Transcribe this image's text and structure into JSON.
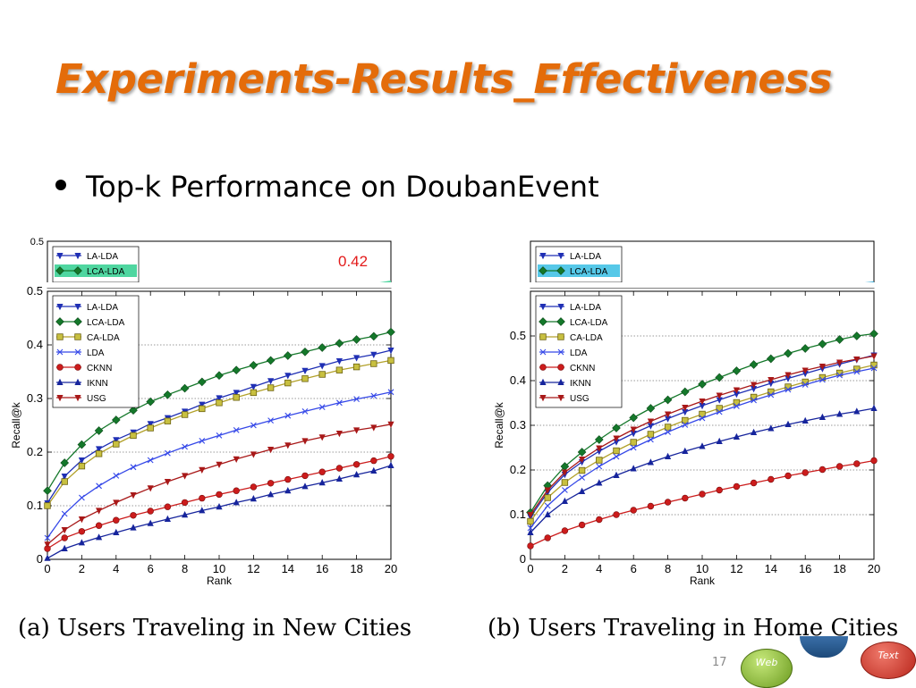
{
  "slide": {
    "title": "Experiments-Results_Effectiveness",
    "bullet": "Top-k Performance on DoubanEvent",
    "page_number": "17",
    "buttons": {
      "web": "Web",
      "text": "Text"
    }
  },
  "colors": {
    "title": "#e46c0a",
    "LA-LDA": "#1f2fb4",
    "LCA-LDA": "#14782a",
    "CA-LDA": "#b2a12a",
    "LDA": "#3548e8",
    "CKNN": "#cc1c1c",
    "IKNN": "#16249c",
    "USG": "#a81818",
    "annotation": "#e31b1b"
  },
  "chart_data": [
    {
      "type": "line",
      "title": "",
      "caption": "(a) Users Traveling in New Cities",
      "xlabel": "Rank",
      "ylabel": "Recall@k",
      "xlim": [
        0,
        20
      ],
      "ylim": [
        0,
        0.5
      ],
      "xticks": [
        "0",
        "2",
        "4",
        "6",
        "8",
        "10",
        "12",
        "14",
        "16",
        "18",
        "20"
      ],
      "yticks": [
        "0",
        "0.1",
        "0.2",
        "0.3",
        "0.4",
        "0.5"
      ],
      "grid": "horizontal dotted",
      "legend": "top-left",
      "x": [
        0,
        1,
        2,
        3,
        4,
        5,
        6,
        7,
        8,
        9,
        10,
        11,
        12,
        13,
        14,
        15,
        16,
        17,
        18,
        19,
        20
      ],
      "annotation": {
        "text": "0.42",
        "top_strip_legend": [
          "LA-LDA",
          "LCA-LDA"
        ],
        "top_strip_yticks": [
          "0.5"
        ]
      },
      "series": [
        {
          "name": "LA-LDA",
          "marker": "tri-down",
          "values": [
            0.105,
            0.155,
            0.185,
            0.206,
            0.223,
            0.237,
            0.253,
            0.264,
            0.276,
            0.289,
            0.301,
            0.311,
            0.322,
            0.333,
            0.343,
            0.352,
            0.361,
            0.37,
            0.376,
            0.382,
            0.39
          ]
        },
        {
          "name": "LCA-LDA",
          "marker": "diamond",
          "values": [
            0.128,
            0.18,
            0.214,
            0.24,
            0.26,
            0.278,
            0.294,
            0.307,
            0.319,
            0.331,
            0.343,
            0.353,
            0.362,
            0.371,
            0.38,
            0.387,
            0.395,
            0.403,
            0.41,
            0.416,
            0.424
          ]
        },
        {
          "name": "CA-LDA",
          "marker": "square",
          "values": [
            0.1,
            0.145,
            0.174,
            0.197,
            0.215,
            0.231,
            0.245,
            0.258,
            0.27,
            0.281,
            0.292,
            0.302,
            0.311,
            0.32,
            0.329,
            0.337,
            0.345,
            0.353,
            0.359,
            0.365,
            0.371
          ]
        },
        {
          "name": "LDA",
          "marker": "x",
          "values": [
            0.04,
            0.085,
            0.115,
            0.137,
            0.156,
            0.172,
            0.185,
            0.198,
            0.21,
            0.221,
            0.231,
            0.241,
            0.25,
            0.259,
            0.268,
            0.276,
            0.284,
            0.292,
            0.299,
            0.305,
            0.312
          ]
        },
        {
          "name": "CKNN",
          "marker": "circle",
          "values": [
            0.02,
            0.04,
            0.052,
            0.063,
            0.073,
            0.082,
            0.09,
            0.098,
            0.106,
            0.114,
            0.121,
            0.128,
            0.135,
            0.142,
            0.149,
            0.156,
            0.163,
            0.17,
            0.177,
            0.184,
            0.192
          ]
        },
        {
          "name": "IKNN",
          "marker": "tri-up",
          "values": [
            0.002,
            0.02,
            0.031,
            0.041,
            0.05,
            0.059,
            0.067,
            0.075,
            0.083,
            0.091,
            0.098,
            0.106,
            0.113,
            0.121,
            0.128,
            0.136,
            0.143,
            0.15,
            0.158,
            0.165,
            0.175
          ]
        },
        {
          "name": "USG",
          "marker": "tri-down",
          "values": [
            0.028,
            0.055,
            0.075,
            0.091,
            0.106,
            0.12,
            0.133,
            0.145,
            0.156,
            0.167,
            0.177,
            0.187,
            0.196,
            0.205,
            0.213,
            0.221,
            0.228,
            0.235,
            0.241,
            0.246,
            0.252
          ]
        }
      ]
    },
    {
      "type": "line",
      "title": "",
      "caption": "(b) Users Traveling in Home Cities",
      "xlabel": "Rank",
      "ylabel": "Recall@k",
      "xlim": [
        0,
        20
      ],
      "ylim": [
        0,
        0.6
      ],
      "xticks": [
        "0",
        "2",
        "4",
        "6",
        "8",
        "10",
        "12",
        "14",
        "16",
        "18",
        "20"
      ],
      "yticks": [
        "0",
        "0.1",
        "0.2",
        "0.3",
        "0.4",
        "0.5"
      ],
      "grid": "horizontal dotted",
      "legend": "top-left",
      "x": [
        0,
        1,
        2,
        3,
        4,
        5,
        6,
        7,
        8,
        9,
        10,
        11,
        12,
        13,
        14,
        15,
        16,
        17,
        18,
        19,
        20
      ],
      "annotation": {
        "top_strip_legend": [
          "LA-LDA",
          "LCA-LDA"
        ]
      },
      "series": [
        {
          "name": "LA-LDA",
          "marker": "tri-down",
          "values": [
            0.095,
            0.15,
            0.19,
            0.218,
            0.242,
            0.263,
            0.282,
            0.299,
            0.315,
            0.33,
            0.344,
            0.357,
            0.37,
            0.382,
            0.394,
            0.405,
            0.416,
            0.427,
            0.437,
            0.447,
            0.457
          ]
        },
        {
          "name": "LCA-LDA",
          "marker": "diamond",
          "values": [
            0.105,
            0.165,
            0.208,
            0.24,
            0.268,
            0.294,
            0.317,
            0.338,
            0.357,
            0.375,
            0.392,
            0.407,
            0.422,
            0.436,
            0.449,
            0.461,
            0.472,
            0.482,
            0.492,
            0.5,
            0.505
          ]
        },
        {
          "name": "CA-LDA",
          "marker": "square",
          "values": [
            0.085,
            0.138,
            0.172,
            0.199,
            0.222,
            0.243,
            0.262,
            0.28,
            0.296,
            0.311,
            0.325,
            0.338,
            0.351,
            0.363,
            0.375,
            0.386,
            0.397,
            0.407,
            0.417,
            0.426,
            0.435
          ]
        },
        {
          "name": "LDA",
          "marker": "x",
          "values": [
            0.07,
            0.12,
            0.155,
            0.183,
            0.208,
            0.23,
            0.25,
            0.268,
            0.285,
            0.301,
            0.316,
            0.33,
            0.343,
            0.356,
            0.368,
            0.38,
            0.391,
            0.402,
            0.412,
            0.42,
            0.428
          ]
        },
        {
          "name": "CKNN",
          "marker": "circle",
          "values": [
            0.03,
            0.048,
            0.064,
            0.077,
            0.089,
            0.1,
            0.11,
            0.119,
            0.128,
            0.137,
            0.146,
            0.155,
            0.163,
            0.171,
            0.179,
            0.187,
            0.194,
            0.201,
            0.208,
            0.214,
            0.221
          ]
        },
        {
          "name": "IKNN",
          "marker": "tri-up",
          "values": [
            0.06,
            0.1,
            0.13,
            0.152,
            0.171,
            0.188,
            0.203,
            0.217,
            0.23,
            0.242,
            0.253,
            0.264,
            0.274,
            0.284,
            0.293,
            0.302,
            0.31,
            0.318,
            0.325,
            0.331,
            0.338
          ]
        },
        {
          "name": "USG",
          "marker": "tri-down",
          "values": [
            0.1,
            0.155,
            0.195,
            0.224,
            0.249,
            0.271,
            0.291,
            0.309,
            0.325,
            0.34,
            0.354,
            0.367,
            0.379,
            0.391,
            0.402,
            0.413,
            0.423,
            0.432,
            0.441,
            0.448,
            0.455
          ]
        }
      ]
    }
  ]
}
